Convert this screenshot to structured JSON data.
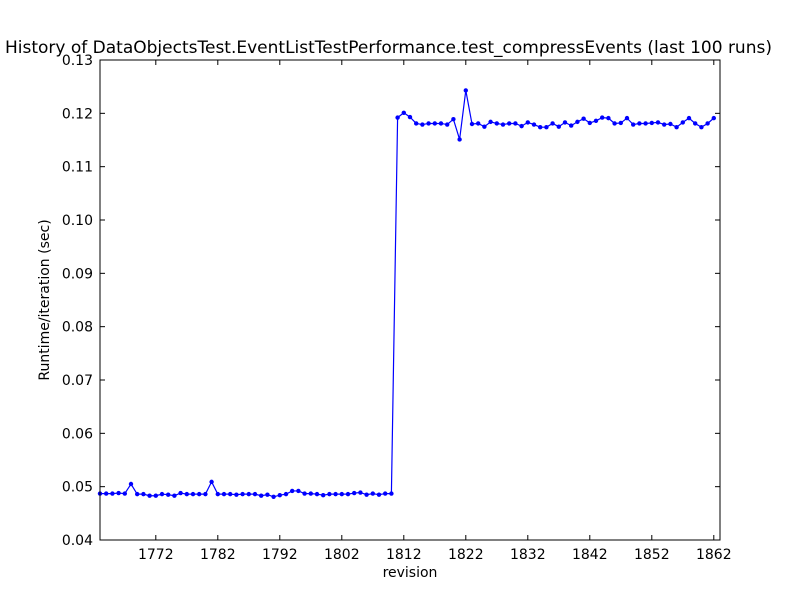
{
  "chart_data": {
    "type": "line",
    "title": "History of DataObjectsTest.EventListTestPerformance.test_compressEvents (last 100 runs)",
    "xlabel": "revision",
    "ylabel": "Runtime/iteration (sec)",
    "xlim": [
      1763,
      1863
    ],
    "ylim": [
      0.04,
      0.13
    ],
    "x_ticks": [
      1772,
      1782,
      1792,
      1802,
      1812,
      1822,
      1832,
      1842,
      1852,
      1862
    ],
    "y_ticks": [
      "0.04",
      "0.05",
      "0.06",
      "0.07",
      "0.08",
      "0.09",
      "0.10",
      "0.11",
      "0.12",
      "0.13"
    ],
    "grid": false,
    "series": [
      {
        "color": "#0000ff",
        "marker": "circle",
        "x": [
          1763,
          1764,
          1765,
          1766,
          1767,
          1768,
          1769,
          1770,
          1771,
          1772,
          1773,
          1774,
          1775,
          1776,
          1777,
          1778,
          1779,
          1780,
          1781,
          1782,
          1783,
          1784,
          1785,
          1786,
          1787,
          1788,
          1789,
          1790,
          1791,
          1792,
          1793,
          1794,
          1795,
          1796,
          1797,
          1798,
          1799,
          1800,
          1801,
          1802,
          1803,
          1804,
          1805,
          1806,
          1807,
          1808,
          1809,
          1810,
          1811,
          1812,
          1813,
          1814,
          1815,
          1816,
          1817,
          1818,
          1819,
          1820,
          1821,
          1822,
          1823,
          1824,
          1825,
          1826,
          1827,
          1828,
          1829,
          1830,
          1831,
          1832,
          1833,
          1834,
          1835,
          1836,
          1837,
          1838,
          1839,
          1840,
          1841,
          1842,
          1843,
          1844,
          1845,
          1846,
          1847,
          1848,
          1849,
          1850,
          1851,
          1852,
          1853,
          1854,
          1855,
          1856,
          1857,
          1858,
          1859,
          1860,
          1861,
          1862
        ],
        "y": [
          0.0487,
          0.0487,
          0.0487,
          0.0488,
          0.0487,
          0.0505,
          0.0486,
          0.0486,
          0.0483,
          0.0483,
          0.0486,
          0.0485,
          0.0483,
          0.0488,
          0.0486,
          0.0486,
          0.0486,
          0.0486,
          0.0509,
          0.0486,
          0.0486,
          0.0486,
          0.0485,
          0.0486,
          0.0486,
          0.0486,
          0.0483,
          0.0485,
          0.0481,
          0.0484,
          0.0486,
          0.0492,
          0.0492,
          0.0487,
          0.0487,
          0.0486,
          0.0484,
          0.0486,
          0.0486,
          0.0486,
          0.0486,
          0.0488,
          0.0489,
          0.0485,
          0.0487,
          0.0485,
          0.0487,
          0.0487,
          0.1192,
          0.1201,
          0.1193,
          0.1181,
          0.1179,
          0.1181,
          0.1181,
          0.1181,
          0.1179,
          0.1189,
          0.1151,
          0.1243,
          0.118,
          0.1181,
          0.1175,
          0.1184,
          0.1181,
          0.1179,
          0.1181,
          0.1181,
          0.1176,
          0.1183,
          0.1179,
          0.1174,
          0.1174,
          0.1181,
          0.1175,
          0.1183,
          0.1177,
          0.1184,
          0.119,
          0.1182,
          0.1186,
          0.1192,
          0.1191,
          0.1181,
          0.1182,
          0.1191,
          0.1179,
          0.1181,
          0.1181,
          0.1182,
          0.1183,
          0.1179,
          0.118,
          0.1174,
          0.1183,
          0.1191,
          0.1181,
          0.1174,
          0.1181,
          0.1191
        ]
      }
    ]
  }
}
